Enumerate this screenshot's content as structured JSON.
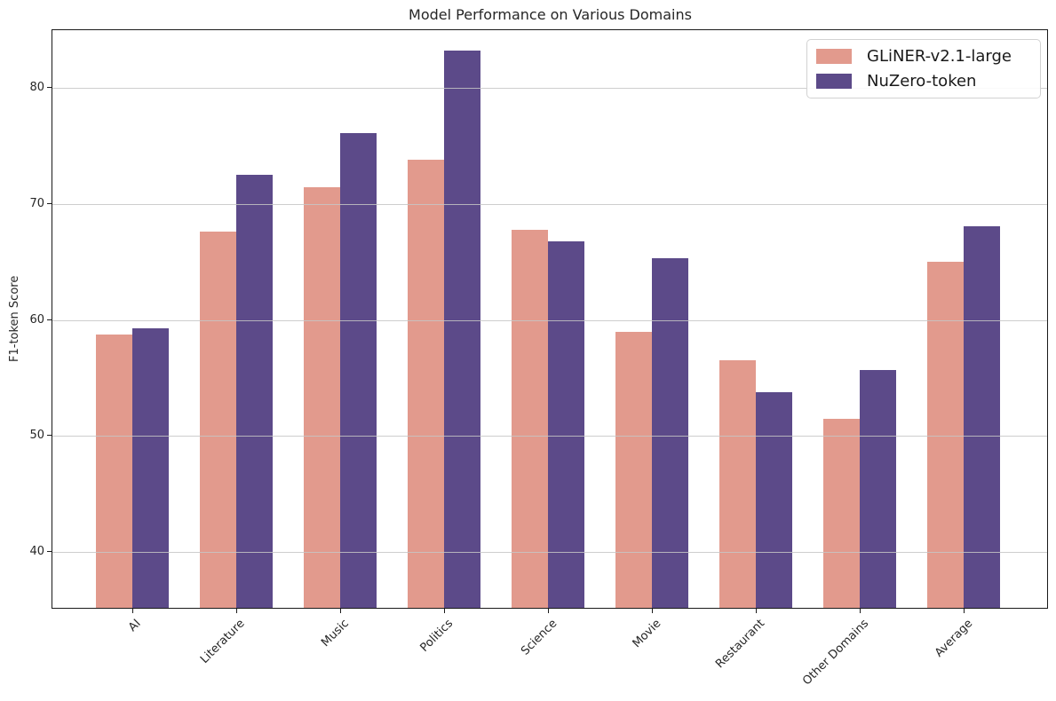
{
  "chart_data": {
    "type": "bar",
    "title": "Model Performance on Various Domains",
    "xlabel": "",
    "ylabel": "F1-token Score",
    "categories": [
      "AI",
      "Literature",
      "Music",
      "Politics",
      "Science",
      "Movie",
      "Restaurant",
      "Other Domains",
      "Average"
    ],
    "series": [
      {
        "name": "GLiNER-v2.1-large",
        "color": "#E29A8D",
        "values": [
          58.6,
          67.5,
          71.3,
          73.7,
          67.6,
          58.8,
          56.4,
          51.3,
          64.9
        ]
      },
      {
        "name": "NuZero-token",
        "color": "#5C4A89",
        "values": [
          59.1,
          72.4,
          76.0,
          83.1,
          66.6,
          65.2,
          53.6,
          55.5,
          67.9
        ]
      }
    ],
    "ylim": [
      35,
      85
    ],
    "yticks": [
      40,
      50,
      60,
      70,
      80
    ],
    "grid": true,
    "grid_axis": "y",
    "legend_position": "upper right",
    "xtick_rotation": 45
  }
}
